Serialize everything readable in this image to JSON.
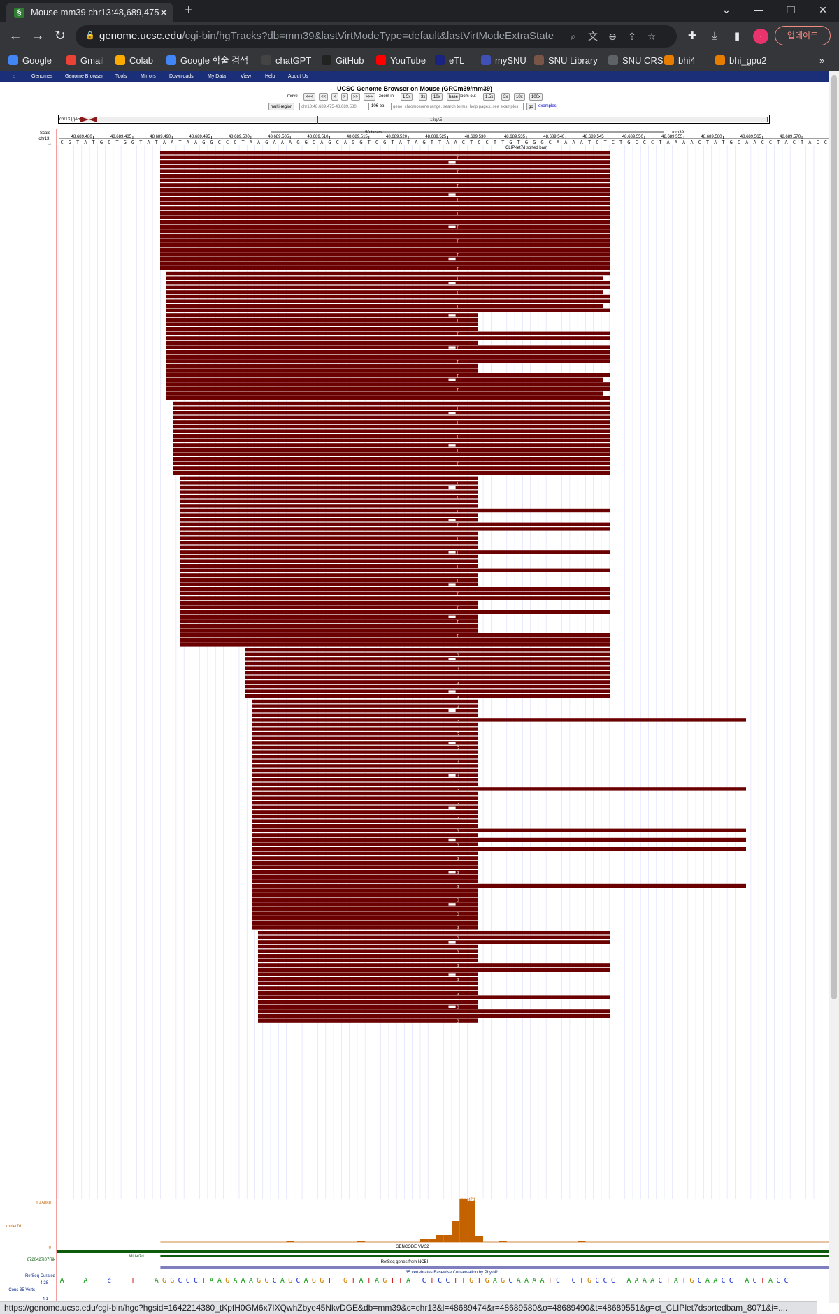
{
  "browser": {
    "tab_title": "Mouse mm39 chr13:48,689,475",
    "tab_favicon": "ucsc-helix-icon",
    "url_host": "genome.ucsc.edu",
    "url_path": "/cgi-bin/hgTracks?db=mm39&lastVirtModeType=default&lastVirtModeExtraState=&...",
    "update_label": "업데이트",
    "status_url": "https://genome.ucsc.edu/cgi-bin/hgc?hgsid=1642214380_tKpfH0GM6x7IXQwhZbye45NkvDGE&db=mm39&c=chr13&l=48689474&r=48689580&o=48689490&t=48689551&g=ct_CLIPlet7dsortedbam_8071&i=...."
  },
  "bookmarks": [
    {
      "label": "Google",
      "icon": "google-icon",
      "color": "#4285f4"
    },
    {
      "label": "Gmail",
      "icon": "gmail-icon",
      "color": "#ea4335"
    },
    {
      "label": "Colab",
      "icon": "colab-icon",
      "color": "#f9ab00"
    },
    {
      "label": "Google 학술 검색",
      "icon": "scholar-icon",
      "color": "#4285f4"
    },
    {
      "label": "chatGPT",
      "icon": "chatgpt-icon",
      "color": "#444"
    },
    {
      "label": "GitHub",
      "icon": "github-icon",
      "color": "#222"
    },
    {
      "label": "YouTube",
      "icon": "youtube-icon",
      "color": "#ff0000"
    },
    {
      "label": "eTL",
      "icon": "etl-icon",
      "color": "#1a237e"
    },
    {
      "label": "mySNU",
      "icon": "mysnu-icon",
      "color": "#3f51b5"
    },
    {
      "label": "SNU Library",
      "icon": "library-icon",
      "color": "#795548"
    },
    {
      "label": "SNU CRS",
      "icon": "globe-icon",
      "color": "#5f6368"
    },
    {
      "label": "bhi4",
      "icon": "bhi-icon",
      "color": "#e67c00"
    },
    {
      "label": "bhi_gpu2",
      "icon": "bhi-icon",
      "color": "#e67c00"
    }
  ],
  "ucsc": {
    "menu": [
      "Genomes",
      "Genome Browser",
      "Tools",
      "Mirrors",
      "Downloads",
      "My Data",
      "View",
      "Help",
      "About Us"
    ],
    "title": "UCSC Genome Browser on Mouse (GRCm39/mm39)",
    "move_label": "move",
    "move_buttons": [
      "<<<",
      "<<",
      "<",
      ">",
      ">>",
      ">>>"
    ],
    "zoom_in_label": "zoom in",
    "zoom_in_buttons": [
      "1.5x",
      "3x",
      "10x",
      "base"
    ],
    "zoom_out_label": "zoom out",
    "zoom_out_buttons": [
      "1.5x",
      "3x",
      "10x",
      "100x"
    ],
    "multi_region": "multi-region",
    "position": "chr13:48,689,475-48,689,580",
    "size": "106 bp.",
    "search_placeholder": "gene, chromosome range, search terms, help pages, see examples",
    "go": "go",
    "examples": "examples",
    "ideogram_label": "chr13 (qA5)",
    "ideogram_band": "13qA5",
    "scale_label": "Scale",
    "chrom_label": "chr13:",
    "scale_bar": "50 bases",
    "assembly": "mm39",
    "positions": [
      "48,689,480",
      "48,689,485",
      "48,689,490",
      "48,689,495",
      "48,689,500",
      "48,689,505",
      "48,689,510",
      "48,689,515",
      "48,689,520",
      "48,689,525",
      "48,689,530",
      "48,689,535",
      "48,689,540",
      "48,689,545",
      "48,689,550",
      "48,689,555",
      "48,689,560",
      "48,689,565",
      "48,689,570"
    ],
    "sequence": "CGTATGCTGGTATAATAAGGCCCTAAGAAAGGCAGCAGGTCGTATAGTTAACTCCTTGTGGGCAAAATCTCTGCCCTAAAACTATGCAACCTACTACC",
    "bam_track": "CLIP-let7d sorted bam",
    "coverage_max": "1.45088",
    "coverage_min": "0",
    "coverage_track": "mirlet7d",
    "coverage_label": "mirlet7d",
    "gencode_label": "GENCODE VM32",
    "gene_left": "6720427I07Rik",
    "gene_mirlet": "Mirlet7d",
    "refseq_label": "RefSeq Curated",
    "refseq_track": "RefSeq genes from NCBI",
    "cons_label": "Cons 35 Verts",
    "cons_track": "35 vertebrates Basewise Conservation by PhyloP",
    "cons_max": "4.28 _",
    "cons_min": "-4.1 _",
    "conservation_sequence": "A  A  c  T  AGGCCCTAAGAAAGGCAGCAGGT GTATAGTTA CTCCTTGTGAGCAAAATC CTGCCC AAAACTATGCAACC ACTACC"
  },
  "colors": {
    "read": "#6b0000",
    "coverage": "#c46200",
    "gene": "#0d5c0d",
    "refseq": "#0a2a86",
    "ucsc_menu": "#1a2f77"
  }
}
